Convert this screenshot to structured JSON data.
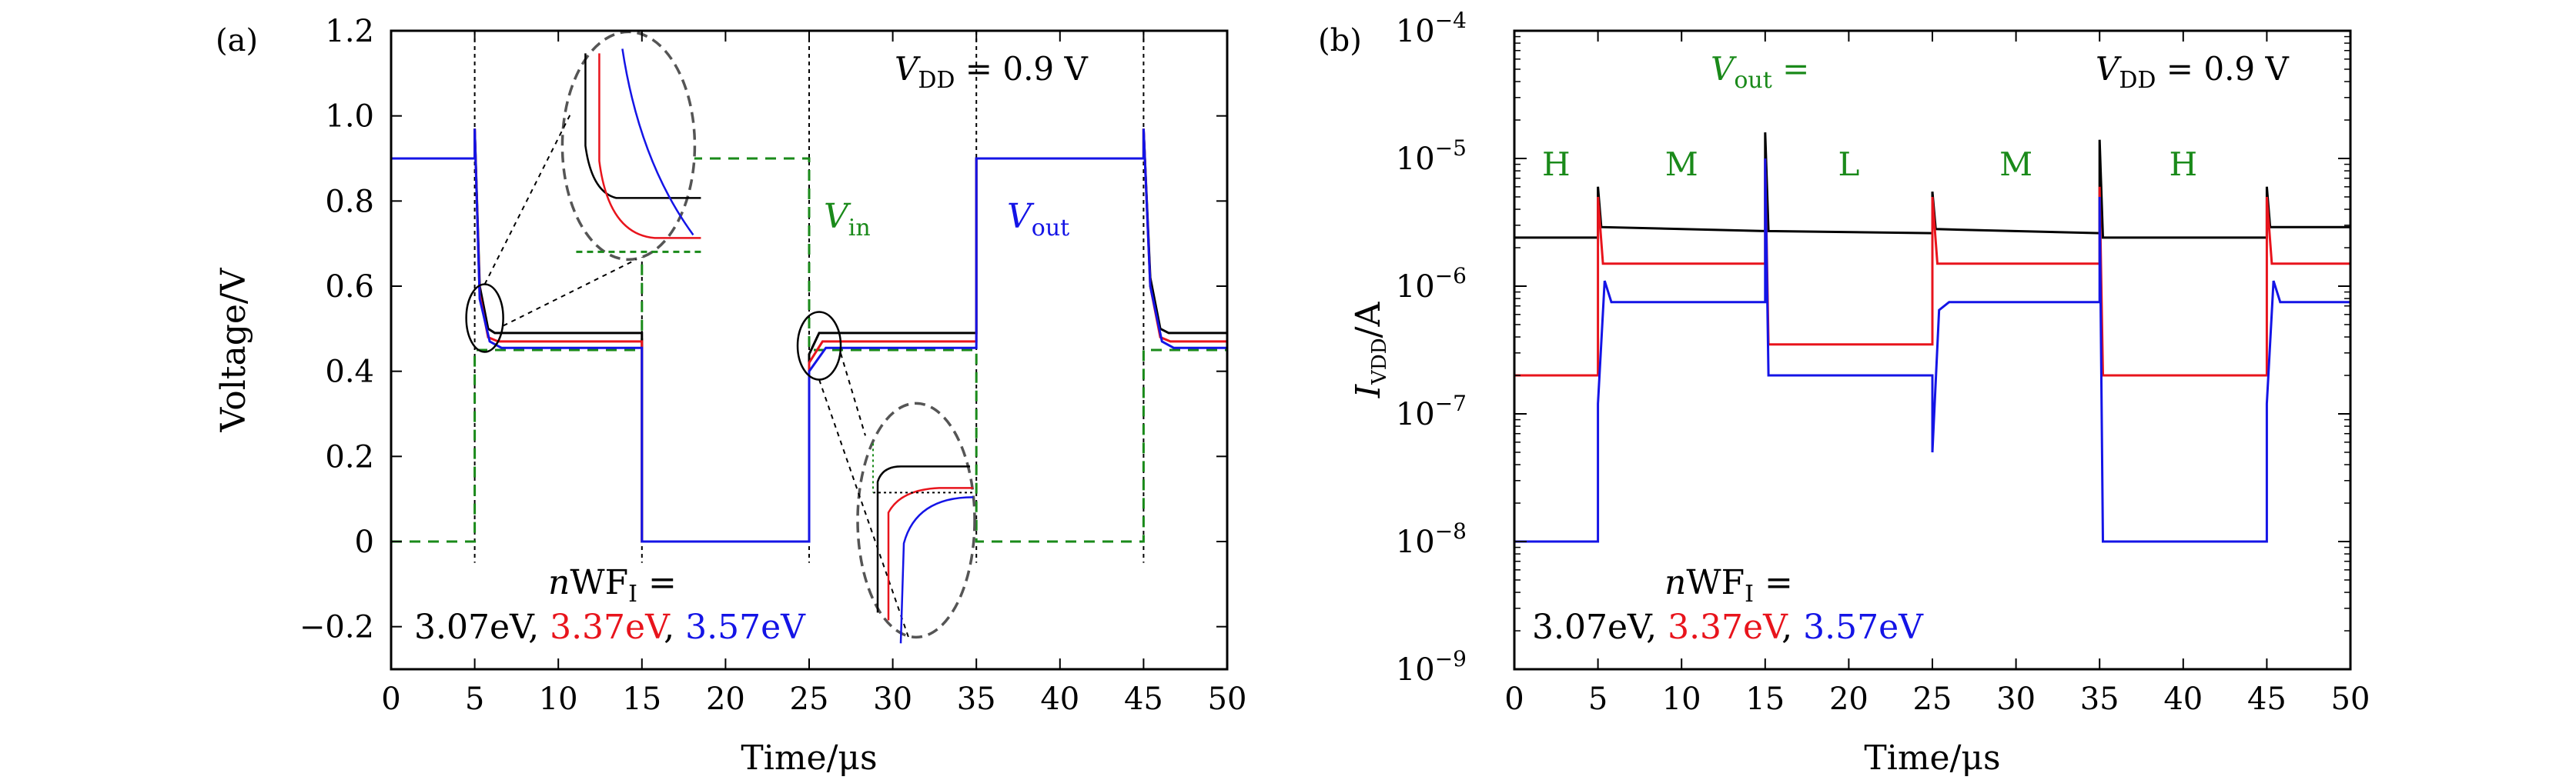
{
  "colors": {
    "black": "#000000",
    "red": "#e8141c",
    "blue": "#1414e6",
    "green": "#1a8a1a",
    "ellipse_gray": "#555555"
  },
  "chart_data": [
    {
      "panel_label": "(a)",
      "type": "line",
      "xlabel": "Time/μs",
      "ylabel": "Voltage/V",
      "xlim": [
        0,
        50
      ],
      "ylim": [
        -0.3,
        1.2
      ],
      "xticks": [
        "0",
        "5",
        "10",
        "15",
        "20",
        "25",
        "30",
        "35",
        "40",
        "45",
        "50"
      ],
      "yticks": [
        "−0.2",
        "0",
        "0.2",
        "0.4",
        "0.6",
        "0.8",
        "1.0",
        "1.2"
      ],
      "annotation_vdd": "V_DD = 0.9 V",
      "label_vin": "V_in",
      "label_vout": "V_out",
      "legend_line1": "nWF_I =",
      "legend_values": [
        {
          "text": "3.07eV",
          "color": "black"
        },
        {
          "text": "3.37eV",
          "color": "red"
        },
        {
          "text": "3.57eV",
          "color": "blue"
        }
      ],
      "vertical_markers": [
        5,
        15,
        25,
        35,
        45
      ],
      "series": [
        {
          "name": "V_in",
          "color": "green",
          "dashed": true,
          "points": [
            [
              0,
              0
            ],
            [
              5,
              0
            ],
            [
              5,
              0.45
            ],
            [
              15,
              0.45
            ],
            [
              15,
              0.9
            ],
            [
              25,
              0.9
            ],
            [
              25,
              0.45
            ],
            [
              35,
              0.45
            ],
            [
              35,
              0
            ],
            [
              45,
              0
            ],
            [
              45,
              0.45
            ],
            [
              50,
              0.45
            ]
          ]
        },
        {
          "name": "3.07eV",
          "color": "black",
          "points": [
            [
              0,
              0.9
            ],
            [
              5,
              0.9
            ],
            [
              5,
              0.97
            ],
            [
              5.3,
              0.6
            ],
            [
              5.8,
              0.5
            ],
            [
              6.2,
              0.49
            ],
            [
              15,
              0.49
            ],
            [
              15,
              0
            ],
            [
              25,
              0
            ],
            [
              25,
              0.44
            ],
            [
              25.6,
              0.49
            ],
            [
              35,
              0.49
            ],
            [
              35,
              0.9
            ],
            [
              45,
              0.9
            ],
            [
              45,
              0.97
            ],
            [
              45.4,
              0.62
            ],
            [
              46,
              0.5
            ],
            [
              46.5,
              0.49
            ],
            [
              50,
              0.49
            ]
          ]
        },
        {
          "name": "3.37eV",
          "color": "red",
          "points": [
            [
              0,
              0.9
            ],
            [
              5,
              0.9
            ],
            [
              5,
              0.97
            ],
            [
              5.3,
              0.58
            ],
            [
              5.8,
              0.48
            ],
            [
              6.4,
              0.47
            ],
            [
              15,
              0.47
            ],
            [
              15,
              0
            ],
            [
              25,
              0
            ],
            [
              25,
              0.42
            ],
            [
              25.8,
              0.47
            ],
            [
              35,
              0.47
            ],
            [
              35,
              0.9
            ],
            [
              45,
              0.9
            ],
            [
              45,
              0.97
            ],
            [
              45.4,
              0.6
            ],
            [
              46,
              0.48
            ],
            [
              46.6,
              0.47
            ],
            [
              50,
              0.47
            ]
          ]
        },
        {
          "name": "3.57eV",
          "color": "blue",
          "points": [
            [
              0,
              0.9
            ],
            [
              5,
              0.9
            ],
            [
              5,
              0.97
            ],
            [
              5.3,
              0.57
            ],
            [
              5.9,
              0.47
            ],
            [
              6.6,
              0.455
            ],
            [
              15,
              0.455
            ],
            [
              15,
              0
            ],
            [
              25,
              0
            ],
            [
              25,
              0.4
            ],
            [
              26,
              0.455
            ],
            [
              35,
              0.455
            ],
            [
              35,
              0.9
            ],
            [
              45,
              0.9
            ],
            [
              45,
              0.97
            ],
            [
              45.4,
              0.6
            ],
            [
              46.1,
              0.47
            ],
            [
              46.8,
              0.455
            ],
            [
              50,
              0.455
            ]
          ]
        }
      ]
    },
    {
      "panel_label": "(b)",
      "type": "line",
      "xlabel": "Time/μs",
      "ylabel": "I_VDD/A",
      "xlim": [
        0,
        50
      ],
      "ylim": [
        1e-09,
        0.0001
      ],
      "yscale": "log",
      "xticks": [
        "0",
        "5",
        "10",
        "15",
        "20",
        "25",
        "30",
        "35",
        "40",
        "45",
        "50"
      ],
      "yticks": [
        {
          "base": "10",
          "exp": "−9"
        },
        {
          "base": "10",
          "exp": "−8"
        },
        {
          "base": "10",
          "exp": "−7"
        },
        {
          "base": "10",
          "exp": "−6"
        },
        {
          "base": "10",
          "exp": "−5"
        },
        {
          "base": "10",
          "exp": "−4"
        }
      ],
      "annotation_vdd": "V_DD = 0.9 V",
      "label_vout": "V_out =",
      "state_labels": [
        "H",
        "M",
        "L",
        "M",
        "H"
      ],
      "legend_line1": "nWF_I =",
      "legend_values": [
        {
          "text": "3.07eV",
          "color": "black"
        },
        {
          "text": "3.37eV",
          "color": "red"
        },
        {
          "text": "3.57eV",
          "color": "blue"
        }
      ],
      "series": [
        {
          "name": "3.07eV",
          "color": "black",
          "points": [
            [
              0,
              2.4e-06
            ],
            [
              5,
              2.4e-06
            ],
            [
              5,
              6e-06
            ],
            [
              5.2,
              2.9e-06
            ],
            [
              15,
              2.7e-06
            ],
            [
              15,
              1.6e-05
            ],
            [
              15.2,
              2.7e-06
            ],
            [
              25,
              2.6e-06
            ],
            [
              25,
              5.5e-06
            ],
            [
              25.2,
              2.8e-06
            ],
            [
              35,
              2.6e-06
            ],
            [
              35,
              1.4e-05
            ],
            [
              35.2,
              2.4e-06
            ],
            [
              45,
              2.4e-06
            ],
            [
              45,
              6e-06
            ],
            [
              45.2,
              2.9e-06
            ],
            [
              50,
              2.9e-06
            ]
          ]
        },
        {
          "name": "3.37eV",
          "color": "red",
          "points": [
            [
              0,
              2e-07
            ],
            [
              5,
              2e-07
            ],
            [
              5,
              5e-06
            ],
            [
              5.3,
              1.5e-06
            ],
            [
              15,
              1.5e-06
            ],
            [
              15,
              1e-05
            ],
            [
              15.2,
              3.5e-07
            ],
            [
              25,
              3.5e-07
            ],
            [
              25,
              5e-06
            ],
            [
              25.3,
              1.5e-06
            ],
            [
              35,
              1.5e-06
            ],
            [
              35,
              6e-06
            ],
            [
              35.2,
              2e-07
            ],
            [
              45,
              2e-07
            ],
            [
              45,
              5e-06
            ],
            [
              45.3,
              1.5e-06
            ],
            [
              50,
              1.5e-06
            ]
          ]
        },
        {
          "name": "3.57eV",
          "color": "blue",
          "points": [
            [
              0,
              1e-08
            ],
            [
              5,
              1e-08
            ],
            [
              5,
              1.2e-07
            ],
            [
              5.4,
              1.1e-06
            ],
            [
              5.8,
              7.5e-07
            ],
            [
              15,
              7.5e-07
            ],
            [
              15,
              1e-05
            ],
            [
              15.2,
              2e-07
            ],
            [
              25,
              2e-07
            ],
            [
              25,
              5e-08
            ],
            [
              25.4,
              6.5e-07
            ],
            [
              26,
              7.5e-07
            ],
            [
              35,
              7.5e-07
            ],
            [
              35,
              5e-06
            ],
            [
              35.2,
              1e-08
            ],
            [
              45,
              1e-08
            ],
            [
              45,
              1.2e-07
            ],
            [
              45.4,
              1.1e-06
            ],
            [
              45.8,
              7.5e-07
            ],
            [
              50,
              7.5e-07
            ]
          ]
        }
      ]
    }
  ]
}
